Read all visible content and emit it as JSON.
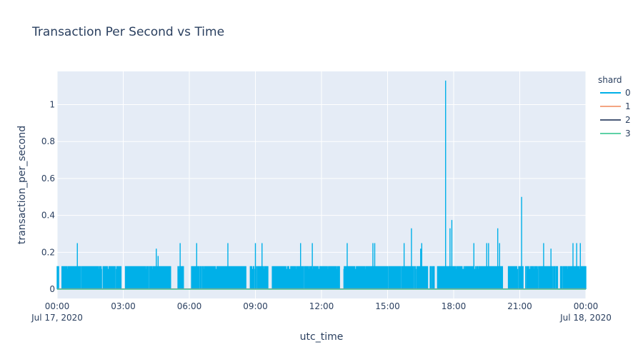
{
  "chart_data": {
    "type": "line",
    "title": "Transaction Per Second vs Time",
    "xlabel": "utc_time",
    "ylabel": "transaction_per_second",
    "x_range": [
      "2020-07-17 00:00",
      "2020-07-18 00:00"
    ],
    "ylim": [
      -0.05,
      1.18
    ],
    "grid": true,
    "legend_title": "shard",
    "legend_position": "right",
    "x_ticks": [
      {
        "time": "00:00",
        "date": "Jul 17, 2020"
      },
      {
        "time": "03:00",
        "date": ""
      },
      {
        "time": "06:00",
        "date": ""
      },
      {
        "time": "09:00",
        "date": ""
      },
      {
        "time": "12:00",
        "date": ""
      },
      {
        "time": "15:00",
        "date": ""
      },
      {
        "time": "18:00",
        "date": ""
      },
      {
        "time": "21:00",
        "date": ""
      },
      {
        "time": "00:00",
        "date": "Jul 18, 2020"
      }
    ],
    "y_ticks": [
      0,
      0.2,
      0.4,
      0.6,
      0.8,
      1
    ],
    "series": [
      {
        "name": "0",
        "color": "#00b0e8",
        "baseline_level": 0.125,
        "peaks": [
          {
            "time": "00:55",
            "value": 0.25
          },
          {
            "time": "04:30",
            "value": 0.22
          },
          {
            "time": "04:35",
            "value": 0.18
          },
          {
            "time": "05:35",
            "value": 0.25
          },
          {
            "time": "06:20",
            "value": 0.25
          },
          {
            "time": "07:45",
            "value": 0.25
          },
          {
            "time": "09:00",
            "value": 0.25
          },
          {
            "time": "09:18",
            "value": 0.25
          },
          {
            "time": "11:03",
            "value": 0.25
          },
          {
            "time": "11:35",
            "value": 0.25
          },
          {
            "time": "13:10",
            "value": 0.25
          },
          {
            "time": "14:20",
            "value": 0.25
          },
          {
            "time": "14:25",
            "value": 0.25
          },
          {
            "time": "15:45",
            "value": 0.25
          },
          {
            "time": "16:05",
            "value": 0.33
          },
          {
            "time": "16:30",
            "value": 0.22
          },
          {
            "time": "16:33",
            "value": 0.25
          },
          {
            "time": "17:38",
            "value": 1.13
          },
          {
            "time": "17:50",
            "value": 0.33
          },
          {
            "time": "17:55",
            "value": 0.375
          },
          {
            "time": "18:55",
            "value": 0.25
          },
          {
            "time": "19:30",
            "value": 0.25
          },
          {
            "time": "19:35",
            "value": 0.25
          },
          {
            "time": "20:00",
            "value": 0.33
          },
          {
            "time": "20:05",
            "value": 0.25
          },
          {
            "time": "21:05",
            "value": 0.5
          },
          {
            "time": "22:05",
            "value": 0.25
          },
          {
            "time": "22:25",
            "value": 0.22
          },
          {
            "time": "22:35",
            "value": 0.125
          },
          {
            "time": "23:25",
            "value": 0.25
          },
          {
            "time": "23:35",
            "value": 0.25
          },
          {
            "time": "23:45",
            "value": 0.25
          }
        ],
        "gaps": [
          {
            "start": "00:05",
            "end": "00:12"
          },
          {
            "start": "02:55",
            "end": "03:05"
          },
          {
            "start": "05:10",
            "end": "05:28"
          },
          {
            "start": "05:45",
            "end": "06:05"
          },
          {
            "start": "08:35",
            "end": "08:45"
          },
          {
            "start": "09:35",
            "end": "09:45"
          },
          {
            "start": "12:50",
            "end": "13:00"
          },
          {
            "start": "16:50",
            "end": "16:55"
          },
          {
            "start": "17:08",
            "end": "17:15"
          },
          {
            "start": "20:15",
            "end": "20:28"
          },
          {
            "start": "21:10",
            "end": "21:15"
          },
          {
            "start": "22:45",
            "end": "22:50"
          }
        ]
      },
      {
        "name": "1",
        "color": "#f4a582",
        "baseline_level": 0
      },
      {
        "name": "2",
        "color": "#4a5a78",
        "baseline_level": 0
      },
      {
        "name": "3",
        "color": "#5ed1a6",
        "baseline_level": 0
      }
    ]
  }
}
